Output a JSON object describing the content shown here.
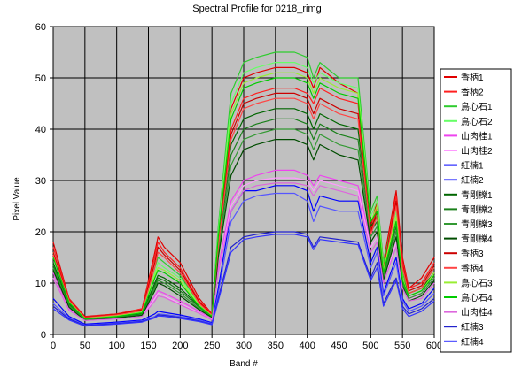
{
  "chart_data": {
    "type": "line",
    "title": "Spectral Profile for 0218_rimg",
    "xlabel": "Band #",
    "ylabel": "Pixel Value",
    "xlim": [
      0,
      600
    ],
    "ylim": [
      0,
      60
    ],
    "x_ticks": [
      0,
      50,
      100,
      150,
      200,
      250,
      300,
      350,
      400,
      450,
      500,
      550,
      600
    ],
    "y_ticks": [
      0,
      10,
      20,
      30,
      40,
      50,
      60
    ],
    "grid": true,
    "legend_position": "right",
    "x": [
      0,
      25,
      50,
      100,
      140,
      160,
      165,
      175,
      200,
      230,
      250,
      260,
      280,
      300,
      320,
      350,
      380,
      400,
      410,
      420,
      450,
      480,
      500,
      510,
      520,
      540,
      550,
      560,
      580,
      600
    ],
    "series": [
      {
        "name": "香柄1",
        "color": "#e00000",
        "values": [
          18,
          7,
          3.5,
          4,
          5,
          16,
          19,
          17,
          14,
          7,
          4,
          20,
          44,
          50,
          51,
          52,
          52,
          51,
          48,
          52,
          49,
          47,
          21,
          26,
          14,
          28,
          15,
          9,
          11,
          15
        ]
      },
      {
        "name": "香柄2",
        "color": "#ff2020",
        "values": [
          17,
          7,
          3.4,
          4,
          5,
          15,
          18,
          16,
          13,
          6.5,
          4,
          19,
          40,
          46,
          47,
          48,
          48,
          47,
          45,
          48,
          46,
          45,
          20,
          25,
          13,
          27,
          14,
          9,
          10,
          14
        ]
      },
      {
        "name": "鳥心石1",
        "color": "#2ecc2e",
        "values": [
          16,
          6.5,
          3.2,
          3.8,
          4.5,
          13,
          15,
          14,
          11.5,
          6,
          3.8,
          21,
          47,
          53,
          54,
          55,
          55,
          54,
          50,
          53,
          50,
          50,
          24,
          27,
          14,
          25,
          12,
          8,
          9,
          13
        ]
      },
      {
        "name": "鳥心石2",
        "color": "#66ff66",
        "values": [
          16,
          6.4,
          3.1,
          3.7,
          4.4,
          12,
          14,
          13,
          11,
          5.8,
          3.7,
          20,
          45,
          51,
          52,
          53,
          53,
          52,
          49,
          51,
          49,
          48,
          23,
          26,
          13,
          24,
          11,
          8,
          9,
          12
        ]
      },
      {
        "name": "山肉桂1",
        "color": "#ee44ee",
        "values": [
          12,
          5,
          2.8,
          3.2,
          3.8,
          7.5,
          8.5,
          8,
          6.5,
          4.5,
          3,
          13,
          26,
          30,
          31,
          32,
          32,
          31,
          29,
          31,
          30,
          29,
          18,
          20,
          11,
          19,
          10,
          7,
          8,
          11
        ]
      },
      {
        "name": "山肉桂2",
        "color": "#ff99ff",
        "values": [
          11,
          4.8,
          2.7,
          3.1,
          3.6,
          7,
          8,
          7.5,
          6,
          4.2,
          2.9,
          12,
          25,
          29,
          30,
          30.5,
          30.5,
          30,
          28,
          30,
          29,
          28,
          17,
          19,
          10,
          18,
          9.5,
          7,
          7.5,
          10
        ]
      },
      {
        "name": "紅楠1",
        "color": "#0000ff",
        "values": [
          7,
          3.5,
          2,
          2.4,
          2.8,
          4,
          4.5,
          4.3,
          3.8,
          3,
          2.3,
          9,
          24,
          28,
          28,
          29,
          29,
          28,
          24,
          27,
          26,
          26,
          14,
          17,
          8,
          15,
          7,
          5,
          6,
          9
        ]
      },
      {
        "name": "紅楠2",
        "color": "#5555ff",
        "values": [
          6,
          3.2,
          1.8,
          2.2,
          2.6,
          3.5,
          4,
          3.9,
          3.5,
          2.8,
          2.1,
          8,
          22,
          26,
          27,
          27.5,
          27.5,
          26,
          22,
          25,
          24,
          24,
          13,
          16,
          7.5,
          14,
          6.5,
          4.5,
          5.5,
          8
        ]
      },
      {
        "name": "青剛櫟1",
        "color": "#006600",
        "values": [
          14,
          6,
          3,
          3.5,
          4,
          10,
          11.5,
          11,
          9,
          5.5,
          3.6,
          18,
          37,
          42,
          43,
          44,
          44,
          43,
          40,
          43,
          41,
          40,
          21,
          23,
          12,
          22,
          11,
          8,
          9,
          12
        ]
      },
      {
        "name": "青剛櫟2",
        "color": "#1a801a",
        "values": [
          13.5,
          5.8,
          2.9,
          3.4,
          3.9,
          9.5,
          11,
          10.5,
          8.5,
          5.3,
          3.5,
          17,
          35,
          40,
          41,
          42,
          42,
          41,
          38,
          41,
          39,
          38,
          20,
          22,
          11.5,
          21,
          10.5,
          7.5,
          8.5,
          11.5
        ]
      },
      {
        "name": "青剛櫟3",
        "color": "#339933",
        "values": [
          13,
          5.5,
          2.8,
          3.3,
          3.8,
          9,
          10.5,
          10,
          8,
          5,
          3.4,
          16,
          33,
          38,
          39,
          40,
          40,
          39,
          36,
          39,
          37,
          36,
          19,
          21,
          11,
          20,
          10,
          7,
          8,
          11
        ]
      },
      {
        "name": "青剛櫟4",
        "color": "#004d00",
        "values": [
          12.5,
          5.3,
          2.7,
          3.2,
          3.7,
          8.5,
          10,
          9.5,
          7.5,
          4.8,
          3.3,
          15,
          31,
          36,
          37,
          38,
          38,
          37,
          34,
          37,
          35,
          34,
          18,
          20,
          10.5,
          19,
          9.5,
          6.5,
          7.5,
          10.5
        ]
      },
      {
        "name": "香柄3",
        "color": "#cc0000",
        "values": [
          16,
          6.8,
          3.3,
          3.9,
          4.8,
          14,
          17,
          15.5,
          12.5,
          6.3,
          3.9,
          18,
          39,
          45,
          46,
          47,
          47,
          46,
          43,
          46,
          44,
          43,
          20,
          24,
          12.5,
          26,
          13.5,
          8.5,
          9.5,
          13.5
        ]
      },
      {
        "name": "香柄4",
        "color": "#ff4444",
        "values": [
          15.5,
          6.6,
          3.2,
          3.8,
          4.6,
          13,
          16,
          15,
          12,
          6,
          3.8,
          17,
          38,
          44,
          45,
          46,
          46,
          45,
          42,
          45,
          43,
          42,
          19.5,
          23,
          12,
          25,
          13,
          8,
          9,
          13
        ]
      },
      {
        "name": "鳥心石3",
        "color": "#99ee33",
        "values": [
          15,
          6.3,
          3.1,
          3.6,
          4.3,
          11.5,
          13,
          12.5,
          10.5,
          5.6,
          3.6,
          19,
          43,
          49,
          50,
          51,
          51,
          50,
          47,
          50,
          48,
          47,
          22,
          25,
          12.5,
          23,
          11,
          7.5,
          8.5,
          12
        ]
      },
      {
        "name": "鳥心石4",
        "color": "#00cc00",
        "values": [
          15,
          6.2,
          3,
          3.5,
          4.2,
          11,
          12.5,
          12,
          10,
          5.5,
          3.5,
          19,
          42,
          48,
          49,
          50,
          50,
          49,
          46,
          49,
          47,
          46,
          22,
          24,
          12,
          22,
          10.5,
          7.5,
          8.5,
          11.5
        ]
      },
      {
        "name": "山肉桂4",
        "color": "#dd66dd",
        "values": [
          11,
          4.7,
          2.7,
          3,
          3.5,
          6.5,
          7.5,
          7.2,
          5.8,
          4.1,
          2.8,
          12,
          24,
          28,
          29,
          29.5,
          29.5,
          29,
          27,
          29,
          28,
          27,
          16,
          18,
          10,
          17,
          9,
          6.5,
          7,
          10
        ]
      },
      {
        "name": "紅楠3",
        "color": "#2222cc",
        "values": [
          5.5,
          3,
          1.7,
          2.1,
          2.5,
          3.3,
          3.8,
          3.7,
          3.3,
          2.6,
          2,
          7,
          17,
          19,
          19.5,
          20,
          20,
          19.5,
          17,
          19,
          18.5,
          18,
          11,
          14,
          6,
          11,
          5.5,
          4,
          5,
          7
        ]
      },
      {
        "name": "紅楠4",
        "color": "#3333ff",
        "values": [
          5,
          2.8,
          1.6,
          2,
          2.4,
          3.2,
          3.6,
          3.5,
          3.1,
          2.5,
          1.9,
          6.5,
          16,
          18.5,
          19,
          19.5,
          19.5,
          19,
          16.5,
          18.5,
          18,
          17.5,
          10.5,
          13,
          5.5,
          10.5,
          5,
          3.5,
          4.5,
          6.5
        ]
      }
    ]
  }
}
